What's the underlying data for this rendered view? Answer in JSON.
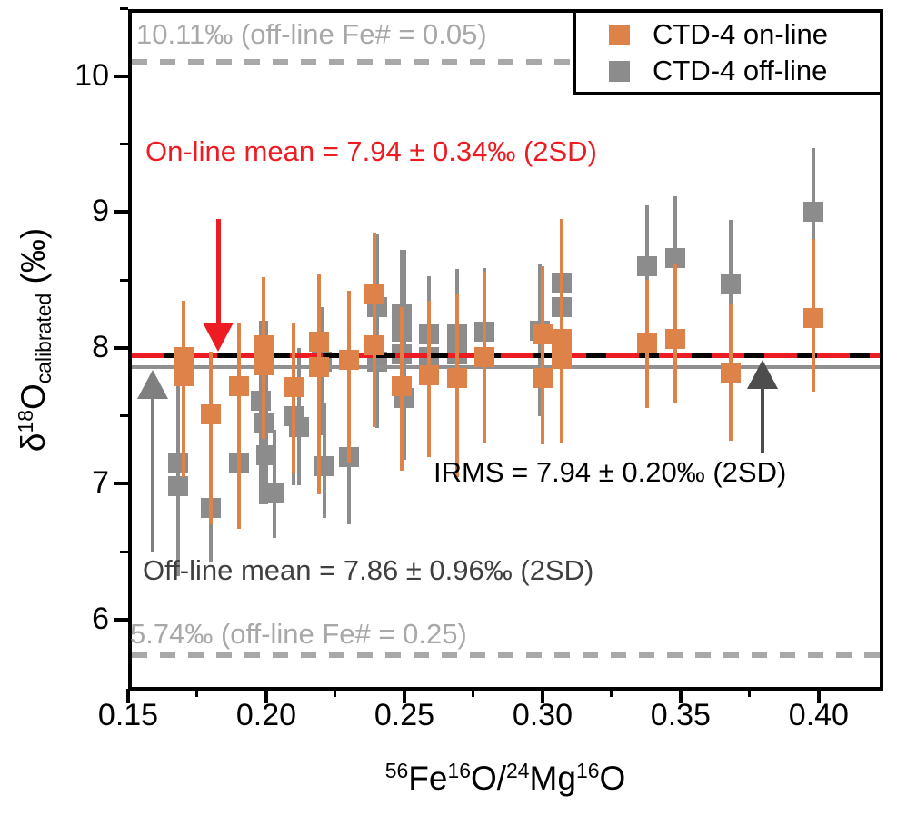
{
  "figure": {
    "background": "#ffffff"
  },
  "legend": {
    "entries": [
      {
        "label": "CTD-4 on-line",
        "color": "#DD8349"
      },
      {
        "label": "CTD-4 off-line",
        "color": "#8C8C8C"
      }
    ]
  },
  "annotations": {
    "top_ref_label": "10.11‰ (off-line Fe# = 0.05)",
    "online_mean_label": "On-line mean = 7.94 ± 0.34‰ (2SD)",
    "irms_label": "IRMS = 7.94 ± 0.20‰ (2SD)",
    "offline_mean_label": "Off-line mean = 7.86 ± 0.96‰ (2SD)",
    "bottom_ref_label": "5.74‰ (off-line Fe# = 0.25)"
  },
  "chart_data": {
    "type": "scatter",
    "title": "",
    "xlabel": "56Fe16O/24Mg16O",
    "ylabel": "d18O calibrated (permil)",
    "xlabel_segments": [
      {
        "t": "56",
        "pos": "sup"
      },
      {
        "t": "Fe"
      },
      {
        "t": "16",
        "pos": "sup"
      },
      {
        "t": "O/"
      },
      {
        "t": "24",
        "pos": "sup"
      },
      {
        "t": "Mg"
      },
      {
        "t": "16",
        "pos": "sup"
      },
      {
        "t": "O"
      }
    ],
    "ylabel_segments": [
      {
        "t": "δ"
      },
      {
        "t": "18",
        "pos": "sup"
      },
      {
        "t": "O"
      },
      {
        "t": "calibrated",
        "pos": "sub"
      },
      {
        "t": " (‰)"
      }
    ],
    "xlim": [
      0.15,
      0.4234
    ],
    "ylim": [
      5.478,
      10.495
    ],
    "grid": false,
    "legend_position": "top-right",
    "x_ticks": [
      0.15,
      0.2,
      0.25,
      0.3,
      0.35,
      0.4
    ],
    "x_tick_labels": [
      "0.15",
      "0.20",
      "0.25",
      "0.30",
      "0.35",
      "0.40"
    ],
    "x_minor_ticks": [
      0.175,
      0.225,
      0.275,
      0.325,
      0.375
    ],
    "y_ticks": [
      6,
      7,
      8,
      9,
      10
    ],
    "y_tick_labels": [
      "6",
      "7",
      "8",
      "9",
      "10"
    ],
    "y_minor_ticks": [
      6.5,
      7.5,
      8.5,
      9.5,
      10.5
    ],
    "ref_lines": [
      {
        "name": "top-ref-line",
        "value": 10.11,
        "style": "dashed",
        "color": "#A8A8A8",
        "thickness": 6,
        "label": "10.11‰ (off-line Fe# = 0.05)"
      },
      {
        "name": "bottom-ref-line",
        "value": 5.74,
        "style": "dashed",
        "color": "#A8A8A8",
        "thickness": 6,
        "label": "5.74‰ (off-line Fe# = 0.25)"
      },
      {
        "name": "offline-mean-line",
        "value": 7.86,
        "style": "solid",
        "color": "#909090",
        "thickness": 4,
        "label": "Off-line mean = 7.86 ± 0.96‰ (2SD)"
      },
      {
        "name": "irms-line",
        "value": 7.94,
        "style": "solid",
        "color": "#000000",
        "thickness": 5,
        "label": "IRMS = 7.94 ± 0.20‰ (2SD)"
      },
      {
        "name": "online-mean-line",
        "value": 7.94,
        "style": "dashed",
        "color": "#ED1B22",
        "thickness": 5,
        "label": "On-line mean = 7.94 ± 0.34‰ (2SD)"
      }
    ],
    "series": [
      {
        "name": "CTD-4 off-line",
        "marker": "square",
        "color": "#8C8C8C",
        "points": [
          {
            "x": 0.168,
            "y": 7.16,
            "lo": 6.32,
            "hi": 7.78
          },
          {
            "x": 0.168,
            "y": 6.98,
            "lo": 6.32,
            "hi": 7.78
          },
          {
            "x": 0.18,
            "y": 6.82,
            "lo": 6.42,
            "hi": 7.4
          },
          {
            "x": 0.19,
            "y": 7.15,
            "lo": 6.69,
            "hi": 7.75
          },
          {
            "x": 0.198,
            "y": 7.61,
            "lo": 6.85,
            "hi": 8.2
          },
          {
            "x": 0.199,
            "y": 7.45,
            "lo": 6.85,
            "hi": 8.2
          },
          {
            "x": 0.2,
            "y": 7.21,
            "lo": 6.85,
            "hi": 8.2
          },
          {
            "x": 0.203,
            "y": 6.93,
            "lo": 6.6,
            "hi": 7.4
          },
          {
            "x": 0.21,
            "y": 7.5,
            "lo": 6.99,
            "hi": 8.0
          },
          {
            "x": 0.212,
            "y": 7.42,
            "lo": 6.99,
            "hi": 8.0
          },
          {
            "x": 0.22,
            "y": 7.9,
            "lo": 7.36,
            "hi": 8.3
          },
          {
            "x": 0.221,
            "y": 7.13,
            "lo": 6.75,
            "hi": 7.6
          },
          {
            "x": 0.23,
            "y": 7.2,
            "lo": 6.7,
            "hi": 7.8
          },
          {
            "x": 0.24,
            "y": 8.3,
            "lo": 7.41,
            "hi": 8.84
          },
          {
            "x": 0.24,
            "y": 7.9,
            "lo": 7.41,
            "hi": 8.84
          },
          {
            "x": 0.249,
            "y": 8.25,
            "lo": 7.18,
            "hi": 8.72
          },
          {
            "x": 0.249,
            "y": 8.12,
            "lo": 7.18,
            "hi": 8.72
          },
          {
            "x": 0.249,
            "y": 7.95,
            "lo": 7.18,
            "hi": 8.72
          },
          {
            "x": 0.25,
            "y": 7.63,
            "lo": 7.18,
            "hi": 8.72
          },
          {
            "x": 0.259,
            "y": 8.1,
            "lo": 7.39,
            "hi": 8.53
          },
          {
            "x": 0.259,
            "y": 7.93,
            "lo": 7.39,
            "hi": 8.53
          },
          {
            "x": 0.269,
            "y": 8.1,
            "lo": 7.25,
            "hi": 8.58
          },
          {
            "x": 0.269,
            "y": 7.95,
            "lo": 7.25,
            "hi": 8.58
          },
          {
            "x": 0.279,
            "y": 8.12,
            "lo": 7.35,
            "hi": 8.59
          },
          {
            "x": 0.299,
            "y": 8.13,
            "lo": 7.5,
            "hi": 8.62
          },
          {
            "x": 0.307,
            "y": 8.48,
            "lo": 7.3,
            "hi": 8.95
          },
          {
            "x": 0.307,
            "y": 8.3,
            "lo": 7.3,
            "hi": 8.95
          },
          {
            "x": 0.338,
            "y": 8.6,
            "lo": 7.56,
            "hi": 9.05
          },
          {
            "x": 0.348,
            "y": 8.66,
            "lo": 7.61,
            "hi": 9.12
          },
          {
            "x": 0.368,
            "y": 8.47,
            "lo": 7.32,
            "hi": 8.94
          },
          {
            "x": 0.398,
            "y": 9.0,
            "lo": 8.15,
            "hi": 9.47
          }
        ]
      },
      {
        "name": "CTD-4 on-line",
        "marker": "square",
        "color": "#DD8349",
        "points": [
          {
            "x": 0.17,
            "y": 7.93,
            "lo": 7.05,
            "hi": 8.35
          },
          {
            "x": 0.17,
            "y": 7.79,
            "lo": 7.05,
            "hi": 8.35
          },
          {
            "x": 0.18,
            "y": 7.51,
            "lo": 6.7,
            "hi": 7.97
          },
          {
            "x": 0.19,
            "y": 7.72,
            "lo": 6.67,
            "hi": 8.18
          },
          {
            "x": 0.199,
            "y": 8.02,
            "lo": 7.33,
            "hi": 8.52
          },
          {
            "x": 0.199,
            "y": 7.87,
            "lo": 7.33,
            "hi": 8.52
          },
          {
            "x": 0.21,
            "y": 7.71,
            "lo": 7.08,
            "hi": 8.18
          },
          {
            "x": 0.219,
            "y": 8.05,
            "lo": 6.92,
            "hi": 8.55
          },
          {
            "x": 0.219,
            "y": 7.86,
            "lo": 6.92,
            "hi": 8.55
          },
          {
            "x": 0.23,
            "y": 7.91,
            "lo": 7.15,
            "hi": 8.42
          },
          {
            "x": 0.239,
            "y": 8.4,
            "lo": 7.42,
            "hi": 8.85
          },
          {
            "x": 0.239,
            "y": 8.02,
            "lo": 7.42,
            "hi": 8.85
          },
          {
            "x": 0.249,
            "y": 7.72,
            "lo": 7.1,
            "hi": 8.3
          },
          {
            "x": 0.259,
            "y": 7.8,
            "lo": 7.2,
            "hi": 8.35
          },
          {
            "x": 0.269,
            "y": 7.78,
            "lo": 7.05,
            "hi": 8.4
          },
          {
            "x": 0.279,
            "y": 7.93,
            "lo": 7.3,
            "hi": 8.56
          },
          {
            "x": 0.3,
            "y": 8.1,
            "lo": 7.29,
            "hi": 8.6
          },
          {
            "x": 0.3,
            "y": 7.78,
            "lo": 7.29,
            "hi": 8.6
          },
          {
            "x": 0.307,
            "y": 8.07,
            "lo": 7.3,
            "hi": 8.95
          },
          {
            "x": 0.307,
            "y": 7.92,
            "lo": 7.3,
            "hi": 8.95
          },
          {
            "x": 0.338,
            "y": 8.03,
            "lo": 7.56,
            "hi": 8.5
          },
          {
            "x": 0.348,
            "y": 8.07,
            "lo": 7.6,
            "hi": 8.62
          },
          {
            "x": 0.368,
            "y": 7.82,
            "lo": 7.32,
            "hi": 8.32
          },
          {
            "x": 0.398,
            "y": 8.22,
            "lo": 7.68,
            "hi": 8.8
          }
        ]
      }
    ],
    "arrows": [
      {
        "name": "online-mean-arrow",
        "color": "#ED1B22",
        "dir": "down",
        "x": 0.1827,
        "tail_y": 8.95,
        "tip_y": 7.97
      },
      {
        "name": "offline-mean-arrow",
        "color": "#7F7F7F",
        "dir": "up",
        "x": 0.1589,
        "tail_y": 6.5,
        "tip_y": 7.84
      },
      {
        "name": "irms-arrow",
        "color": "#4D4D4D",
        "dir": "up",
        "x": 0.3795,
        "tail_y": 7.23,
        "tip_y": 7.91
      }
    ]
  }
}
